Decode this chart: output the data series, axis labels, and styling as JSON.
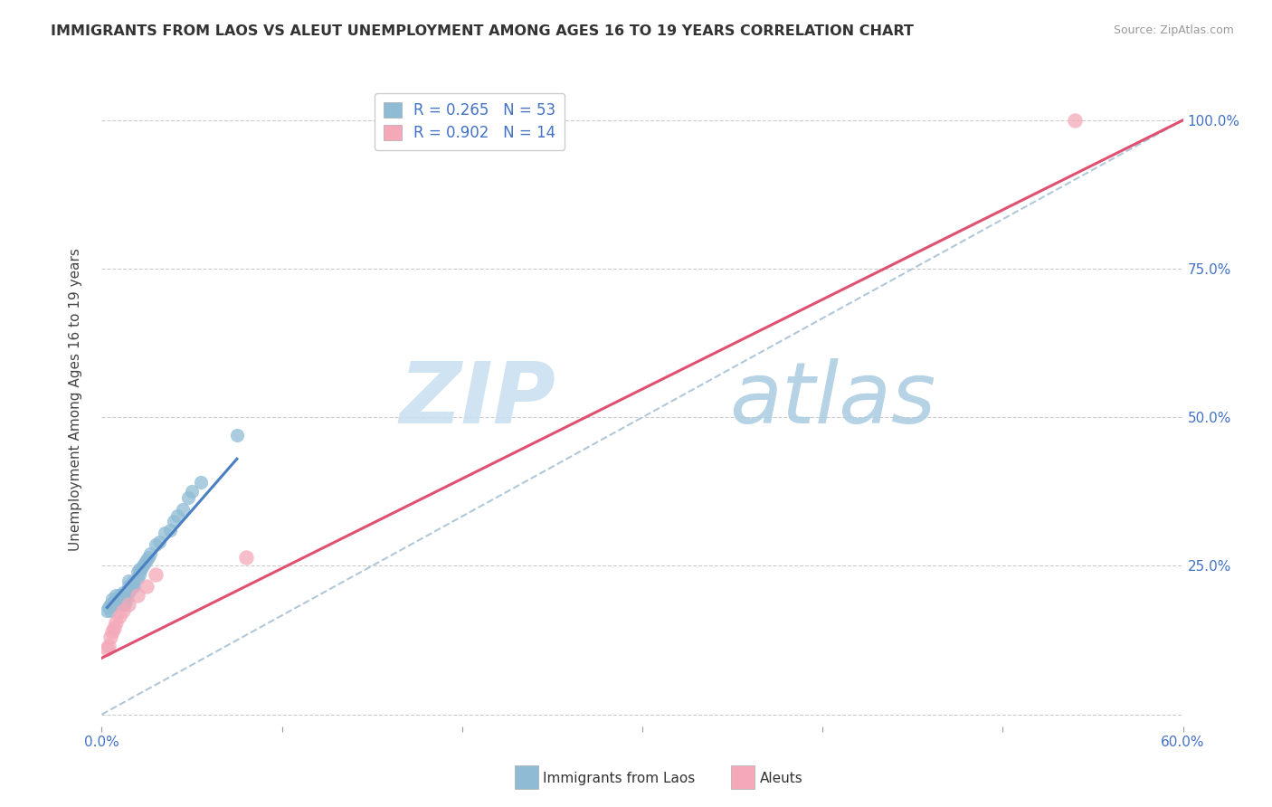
{
  "title": "IMMIGRANTS FROM LAOS VS ALEUT UNEMPLOYMENT AMONG AGES 16 TO 19 YEARS CORRELATION CHART",
  "source": "Source: ZipAtlas.com",
  "ylabel": "Unemployment Among Ages 16 to 19 years",
  "xmin": 0.0,
  "xmax": 0.6,
  "ymin": -0.02,
  "ymax": 1.08,
  "r_laos": 0.265,
  "n_laos": 53,
  "r_aleut": 0.902,
  "n_aleut": 14,
  "legend_label_laos": "Immigrants from Laos",
  "legend_label_aleut": "Aleuts",
  "color_laos": "#8fbcd4",
  "color_aleut": "#f4a8b8",
  "color_laos_line": "#4a7fc1",
  "color_aleut_line": "#e05070",
  "color_dashed": "#b0c8d8",
  "watermark_zip": "ZIP",
  "watermark_atlas": "atlas",
  "laos_x": [
    0.003,
    0.004,
    0.005,
    0.005,
    0.006,
    0.006,
    0.007,
    0.007,
    0.008,
    0.008,
    0.009,
    0.009,
    0.01,
    0.01,
    0.01,
    0.011,
    0.011,
    0.012,
    0.012,
    0.012,
    0.013,
    0.013,
    0.014,
    0.015,
    0.015,
    0.015,
    0.016,
    0.016,
    0.017,
    0.017,
    0.018,
    0.018,
    0.02,
    0.02,
    0.021,
    0.021,
    0.022,
    0.023,
    0.024,
    0.025,
    0.026,
    0.027,
    0.03,
    0.032,
    0.035,
    0.038,
    0.04,
    0.042,
    0.045,
    0.048,
    0.05,
    0.055,
    0.075
  ],
  "laos_y": [
    0.175,
    0.18,
    0.185,
    0.175,
    0.195,
    0.185,
    0.19,
    0.185,
    0.2,
    0.185,
    0.195,
    0.185,
    0.2,
    0.19,
    0.185,
    0.2,
    0.185,
    0.205,
    0.195,
    0.185,
    0.2,
    0.185,
    0.195,
    0.225,
    0.215,
    0.205,
    0.215,
    0.21,
    0.22,
    0.215,
    0.225,
    0.215,
    0.24,
    0.23,
    0.245,
    0.235,
    0.245,
    0.25,
    0.255,
    0.26,
    0.265,
    0.27,
    0.285,
    0.29,
    0.305,
    0.31,
    0.325,
    0.335,
    0.345,
    0.365,
    0.375,
    0.39,
    0.47
  ],
  "aleut_x": [
    0.003,
    0.004,
    0.005,
    0.006,
    0.007,
    0.008,
    0.01,
    0.012,
    0.015,
    0.02,
    0.025,
    0.03,
    0.08,
    0.54
  ],
  "aleut_y": [
    0.11,
    0.115,
    0.13,
    0.14,
    0.145,
    0.155,
    0.165,
    0.175,
    0.185,
    0.2,
    0.215,
    0.235,
    0.265,
    1.0
  ],
  "laos_line_x": [
    0.003,
    0.075
  ],
  "laos_line_y": [
    0.18,
    0.43
  ],
  "aleut_line_x": [
    0.0,
    0.6
  ],
  "aleut_line_y": [
    0.095,
    1.0
  ],
  "dashed_line_x": [
    0.0,
    0.6
  ],
  "dashed_line_y": [
    0.0,
    1.0
  ],
  "ytick_positions": [
    0.0,
    0.25,
    0.5,
    0.75,
    1.0
  ],
  "ytick_labels_right": [
    "",
    "25.0%",
    "50.0%",
    "75.0%",
    "100.0%"
  ],
  "xtick_positions": [
    0.0,
    0.1,
    0.2,
    0.3,
    0.4,
    0.5,
    0.6
  ],
  "tick_color": "#4472c4",
  "title_fontsize": 11.5,
  "axis_fontsize": 11,
  "watermark_fontsize_zip": 68,
  "watermark_fontsize_atlas": 68
}
